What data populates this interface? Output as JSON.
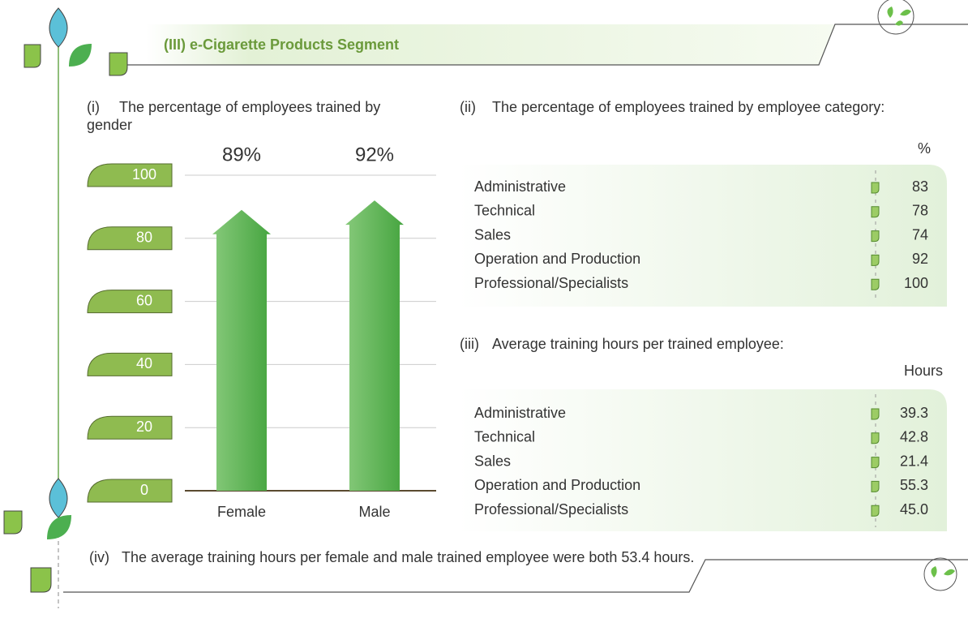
{
  "header": {
    "title": "(III) e-Cigarette Products Segment"
  },
  "chart_data": {
    "type": "bar",
    "label": "(i)",
    "title": "The percentage of employees trained by gender",
    "categories": [
      "Female",
      "Male"
    ],
    "values": [
      89,
      92
    ],
    "value_labels": [
      "89%",
      "92%"
    ],
    "color": "#5cb553",
    "ylim": [
      0,
      100
    ],
    "yticks": [
      0,
      20,
      40,
      60,
      80,
      100
    ],
    "grid": true
  },
  "section_ii": {
    "label": "(ii)",
    "text": "The percentage of employees trained by employee category:",
    "unit": "%",
    "rows": [
      [
        "Administrative",
        "83"
      ],
      [
        "Technical",
        "78"
      ],
      [
        "Sales",
        "74"
      ],
      [
        "Operation and Production",
        "92"
      ],
      [
        "Professional/Specialists",
        "100"
      ]
    ]
  },
  "section_iii": {
    "label": "(iii)",
    "text": "Average training hours per trained employee:",
    "unit": "Hours",
    "rows": [
      [
        "Administrative",
        "39.3"
      ],
      [
        "Technical",
        "42.8"
      ],
      [
        "Sales",
        "21.4"
      ],
      [
        "Operation and Production",
        "55.3"
      ],
      [
        "Professional/Specialists",
        "45.0"
      ]
    ]
  },
  "note": {
    "label": "(iv)",
    "text": "The average training hours per female and male trained employee were both 53.4 hours."
  }
}
